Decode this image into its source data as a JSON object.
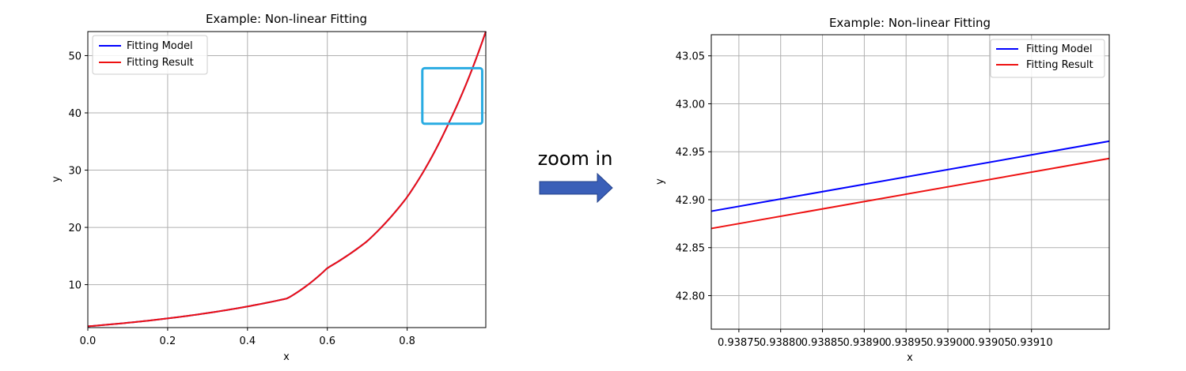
{
  "annotation": {
    "text": "zoom in",
    "arrow_color": "#3a5fb8",
    "box_color": "#29abe2"
  },
  "colors": {
    "model": "#0000ff",
    "result": "#ee1111",
    "grid": "#b0b0b0"
  },
  "chart_data": [
    {
      "type": "line",
      "title": "Example: Non-linear Fitting",
      "xlabel": "x",
      "ylabel": "y",
      "xlim": [
        0.0,
        0.997
      ],
      "ylim": [
        2.5,
        54.2
      ],
      "xticks": [
        0.0,
        0.2,
        0.4,
        0.6,
        0.8
      ],
      "xtick_labels": [
        "0.0",
        "0.2",
        "0.4",
        "0.6",
        "0.8"
      ],
      "yticks": [
        10,
        20,
        30,
        40,
        50
      ],
      "ytick_labels": [
        "10",
        "20",
        "30",
        "40",
        "50"
      ],
      "grid": true,
      "legend": "top-left",
      "series": [
        {
          "name": "Fitting Model",
          "x": [
            0.0,
            0.1,
            0.2,
            0.3,
            0.4,
            0.5,
            0.6,
            0.7,
            0.8,
            0.9,
            0.997
          ],
          "y": [
            2.72,
            3.34,
            4.1,
            5.04,
            6.19,
            7.6,
            12.9,
            17.6,
            25.3,
            37.6,
            54.2
          ]
        },
        {
          "name": "Fitting Result",
          "x": [
            0.0,
            0.1,
            0.2,
            0.3,
            0.4,
            0.5,
            0.6,
            0.7,
            0.8,
            0.9,
            0.997
          ],
          "y": [
            2.72,
            3.34,
            4.1,
            5.04,
            6.19,
            7.6,
            12.9,
            17.6,
            25.3,
            37.6,
            54.2
          ]
        }
      ],
      "zoom_box": {
        "x": [
          0.838,
          0.988
        ],
        "y": [
          38.1,
          47.8
        ]
      }
    },
    {
      "type": "line",
      "title": "Example: Non-linear Fitting",
      "xlabel": "x",
      "ylabel": "y",
      "xlim": [
        0.938717,
        0.939193
      ],
      "ylim": [
        42.765,
        43.072
      ],
      "xticks": [
        0.93875,
        0.9388,
        0.93885,
        0.9389,
        0.93895,
        0.939,
        0.93905,
        0.9391
      ],
      "xtick_labels": [
        "0.93875",
        "0.93880",
        "0.93885",
        "0.93890",
        "0.93895",
        "0.93900",
        "0.93905",
        "0.93910"
      ],
      "yticks": [
        42.8,
        42.85,
        42.9,
        42.95,
        43.0,
        43.05
      ],
      "ytick_labels": [
        "42.80",
        "42.85",
        "42.90",
        "42.95",
        "43.00",
        "43.05"
      ],
      "grid": true,
      "legend": "top-right",
      "series": [
        {
          "name": "Fitting Model",
          "x": [
            0.938717,
            0.939193
          ],
          "y": [
            42.888,
            42.961
          ]
        },
        {
          "name": "Fitting Result",
          "x": [
            0.938717,
            0.939193
          ],
          "y": [
            42.87,
            42.943
          ]
        }
      ]
    }
  ]
}
